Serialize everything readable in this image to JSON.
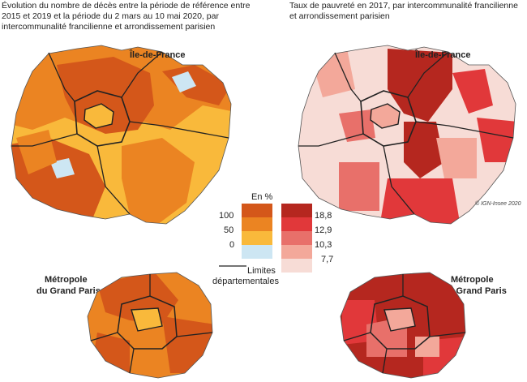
{
  "left_title": "Évolution du nombre de décès entre la période de référence entre 2015 et 2019 et la période du 2 mars au 10 mai 2020, par intercommunalité francilienne et arrondissement parisien",
  "right_title": "Taux de pauvreté en 2017, par intercommunalité francilienne et arrondissement parisien",
  "region_label": "Île-de-France",
  "metro_label_line1": "Métropole",
  "metro_label_line2": "du Grand Paris",
  "credit": "© IGN-Insee 2020",
  "legend_left": {
    "unit": "En %",
    "ticks": [
      "100",
      "50",
      "0"
    ],
    "boundary_line1": "Limites",
    "boundary_line2": "départementales"
  },
  "legend_right": {
    "ticks": [
      "18,8",
      "12,9",
      "10,3",
      "7,7"
    ]
  },
  "colors": {
    "deaths_high": "#d4571a",
    "deaths_mid": "#eb8422",
    "deaths_low": "#f9b93b",
    "deaths_neg": "#cde6f3",
    "pov_1": "#b5271f",
    "pov_2": "#e1383a",
    "pov_3": "#e8706a",
    "pov_4": "#f3a89a",
    "pov_5": "#f7dcd6"
  }
}
